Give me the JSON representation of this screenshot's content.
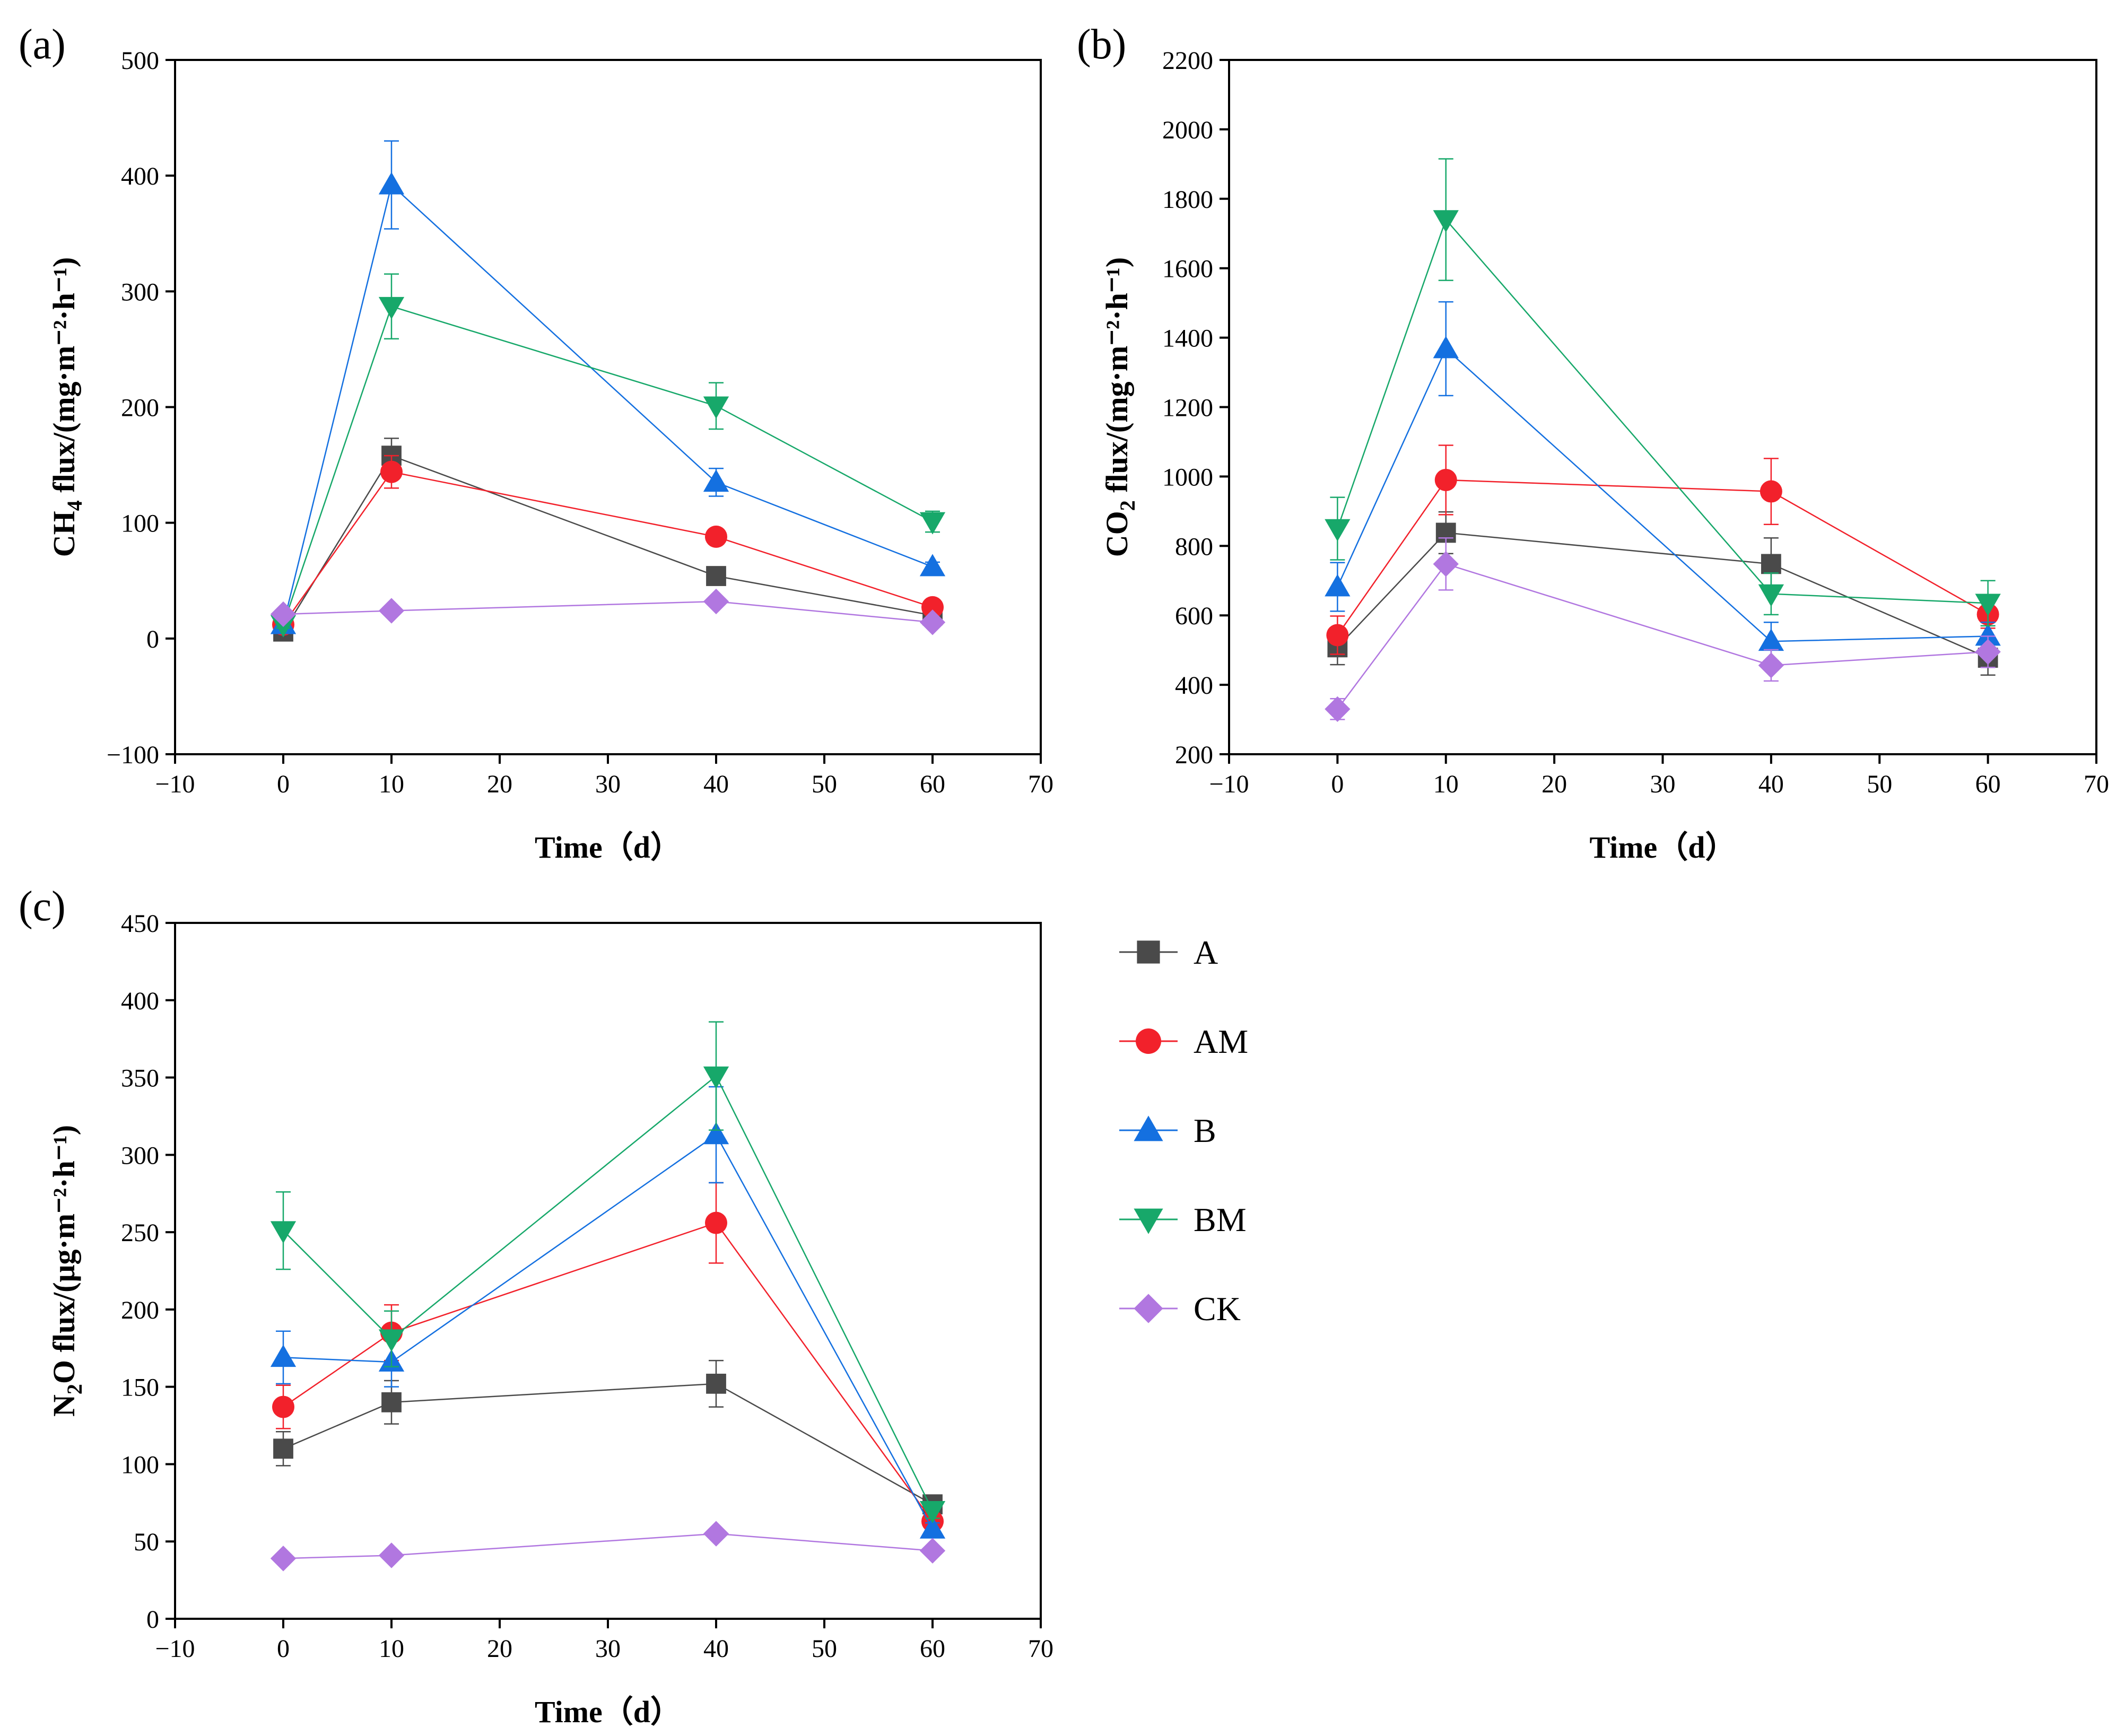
{
  "colors": {
    "A": "#4a4a4a",
    "AM": "#f2212b",
    "B": "#1470e0",
    "BM": "#17a86a",
    "CK": "#b177e0"
  },
  "legend": [
    {
      "key": "A",
      "label": "A",
      "marker": "square"
    },
    {
      "key": "AM",
      "label": "AM",
      "marker": "circle"
    },
    {
      "key": "B",
      "label": "B",
      "marker": "triangle-up"
    },
    {
      "key": "BM",
      "label": "BM",
      "marker": "triangle-down"
    },
    {
      "key": "CK",
      "label": "CK",
      "marker": "diamond"
    }
  ],
  "chart_data": [
    {
      "panel": "(a)",
      "type": "line",
      "xlabel": "Time（d）",
      "ylabel_main": "CH",
      "ylabel_sub": "4",
      "ylabel_rest": " flux/(mg·m⁻²·h⁻¹)",
      "x": [
        0,
        10,
        40,
        60
      ],
      "xlim": [
        -10,
        70
      ],
      "ylim": [
        -100,
        500
      ],
      "xticks": [
        -10,
        0,
        10,
        20,
        30,
        40,
        50,
        60,
        70
      ],
      "yticks": [
        -100,
        0,
        100,
        200,
        300,
        400,
        500
      ],
      "xtick_labels": [
        "−10",
        "0",
        "10",
        "20",
        "30",
        "40",
        "50",
        "60",
        "70"
      ],
      "ytick_labels": [
        "−100",
        "0",
        "100",
        "200",
        "300",
        "400",
        "500"
      ],
      "series": [
        {
          "name": "A",
          "values": [
            6,
            158,
            54,
            20
          ],
          "errors": [
            3,
            15,
            4,
            3
          ]
        },
        {
          "name": "AM",
          "values": [
            12,
            144,
            88,
            27
          ],
          "errors": [
            3,
            14,
            6,
            3
          ]
        },
        {
          "name": "B",
          "values": [
            12,
            392,
            135,
            62
          ],
          "errors": [
            3,
            38,
            12,
            4
          ]
        },
        {
          "name": "BM",
          "values": [
            12,
            287,
            201,
            101
          ],
          "errors": [
            3,
            28,
            20,
            9
          ]
        },
        {
          "name": "CK",
          "values": [
            21,
            24,
            32,
            14
          ],
          "errors": [
            3,
            3,
            3,
            2
          ]
        }
      ]
    },
    {
      "panel": "(b)",
      "type": "line",
      "xlabel": "Time（d）",
      "ylabel_main": "CO",
      "ylabel_sub": "2",
      "ylabel_rest": " flux/(mg·m⁻²·h⁻¹)",
      "x": [
        0,
        10,
        40,
        60
      ],
      "xlim": [
        -10,
        70
      ],
      "ylim": [
        200,
        2200
      ],
      "xticks": [
        -10,
        0,
        10,
        20,
        30,
        40,
        50,
        60,
        70
      ],
      "yticks": [
        200,
        400,
        600,
        800,
        1000,
        1200,
        1400,
        1600,
        1800,
        2000,
        2200
      ],
      "xtick_labels": [
        "−10",
        "0",
        "10",
        "20",
        "30",
        "40",
        "50",
        "60",
        "70"
      ],
      "ytick_labels": [
        "200",
        "400",
        "600",
        "800",
        "1000",
        "1200",
        "1400",
        "1600",
        "1800",
        "2000",
        "2200"
      ],
      "series": [
        {
          "name": "A",
          "values": [
            508,
            838,
            748,
            478
          ],
          "errors": [
            50,
            60,
            75,
            50
          ]
        },
        {
          "name": "AM",
          "values": [
            543,
            990,
            957,
            603
          ],
          "errors": [
            55,
            100,
            95,
            40
          ]
        },
        {
          "name": "B",
          "values": [
            682,
            1368,
            525,
            540
          ],
          "errors": [
            70,
            135,
            55,
            40
          ]
        },
        {
          "name": "BM",
          "values": [
            850,
            1740,
            662,
            635
          ],
          "errors": [
            90,
            175,
            60,
            65
          ]
        },
        {
          "name": "CK",
          "values": [
            330,
            748,
            456,
            495
          ],
          "errors": [
            30,
            75,
            45,
            45
          ]
        }
      ]
    },
    {
      "panel": "(c)",
      "type": "line",
      "xlabel": "Time（d）",
      "ylabel_main": "N",
      "ylabel_sub": "2",
      "ylabel_rest": "O flux/(μg·m⁻²·h⁻¹)",
      "x": [
        0,
        10,
        40,
        60
      ],
      "xlim": [
        -10,
        70
      ],
      "ylim": [
        0,
        450
      ],
      "xticks": [
        -10,
        0,
        10,
        20,
        30,
        40,
        50,
        60,
        70
      ],
      "yticks": [
        0,
        50,
        100,
        150,
        200,
        250,
        300,
        350,
        400,
        450
      ],
      "xtick_labels": [
        "−10",
        "0",
        "10",
        "20",
        "30",
        "40",
        "50",
        "60",
        "70"
      ],
      "ytick_labels": [
        "0",
        "50",
        "100",
        "150",
        "200",
        "250",
        "300",
        "350",
        "400",
        "450"
      ],
      "series": [
        {
          "name": "A",
          "values": [
            110,
            140,
            152,
            74
          ],
          "errors": [
            11,
            14,
            15,
            4
          ]
        },
        {
          "name": "AM",
          "values": [
            137,
            185,
            256,
            63
          ],
          "errors": [
            14,
            18,
            26,
            4
          ]
        },
        {
          "name": "B",
          "values": [
            169,
            166,
            313,
            58
          ],
          "errors": [
            17,
            16,
            31,
            4
          ]
        },
        {
          "name": "BM",
          "values": [
            251,
            181,
            351,
            70
          ],
          "errors": [
            25,
            18,
            35,
            5
          ]
        },
        {
          "name": "CK",
          "values": [
            39,
            41,
            55,
            44
          ],
          "errors": [
            3,
            3,
            3,
            3
          ]
        }
      ]
    }
  ]
}
